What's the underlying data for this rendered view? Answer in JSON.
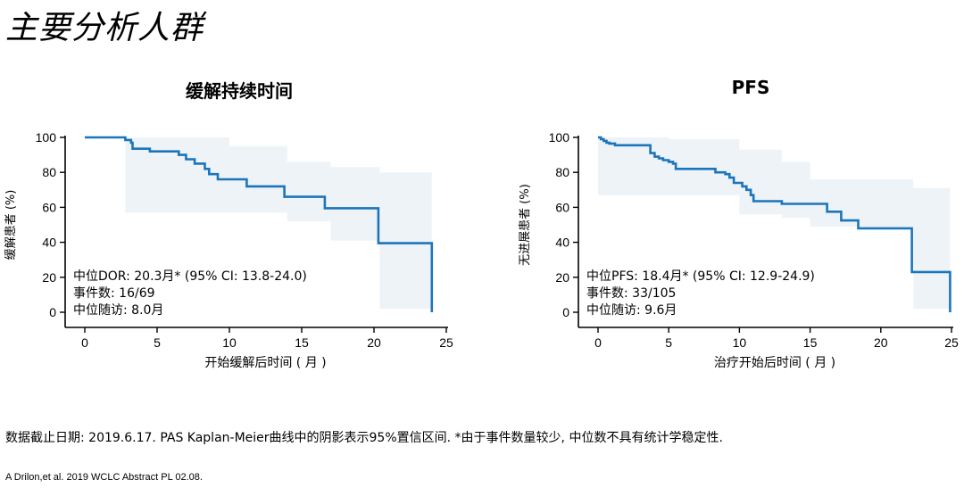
{
  "page": {
    "title": "主要分析人群",
    "footnote": "数据截止日期: 2019.6.17. PAS Kaplan-Meier曲线中的阴影表示95%置信区间. *由于事件数量较少, 中位数不具有统计学稳定性.",
    "reference": "A Drilon,et al. 2019 WCLC Abstract PL 02.08."
  },
  "colors": {
    "curve": "#1b75bb",
    "ci_band": "#eef3f8",
    "axis": "#000000"
  },
  "chart_data": [
    {
      "type": "line",
      "subtype": "kaplan-meier",
      "title": "缓解持续时间",
      "xlabel": "开始缓解后时间 ( 月 )",
      "ylabel": "缓解患者 (%)",
      "xlim": [
        0,
        25
      ],
      "ylim": [
        0,
        100
      ],
      "xticks": [
        0,
        5,
        10,
        15,
        20,
        25
      ],
      "yticks": [
        0,
        20,
        40,
        60,
        80,
        100
      ],
      "grid": false,
      "annotations": [
        "中位DOR: 20.3月* (95% CI: 13.8-24.0)",
        "事件数: 16/69",
        "中位随访: 8.0月"
      ],
      "series": [
        {
          "x": [
            0,
            2.8,
            3.2,
            3.3,
            4.5,
            5.0,
            6.5,
            7.0,
            7.6,
            8.3,
            8.6,
            9.2,
            11.2,
            13.8,
            16.6,
            20.3,
            24.0,
            24.0
          ],
          "y": [
            100,
            98.5,
            97,
            93.5,
            92,
            92,
            90,
            87.5,
            85,
            82,
            79,
            76,
            72,
            66,
            59.5,
            39.5,
            39.5,
            0
          ]
        }
      ],
      "ci_band": {
        "x": [
          2.8,
          8.0,
          10.0,
          14.0,
          17.0,
          20.4,
          24.0
        ],
        "lower": [
          57,
          57,
          57,
          52,
          41,
          2,
          2
        ],
        "upper": [
          100,
          100,
          95,
          86,
          83,
          80,
          80
        ]
      }
    },
    {
      "type": "line",
      "subtype": "kaplan-meier",
      "title": "PFS",
      "xlabel": "治疗开始后时间 ( 月 )",
      "ylabel": "无进展患者 (%)",
      "xlim": [
        0,
        25
      ],
      "ylim": [
        0,
        100
      ],
      "xticks": [
        0,
        5,
        10,
        15,
        20,
        25
      ],
      "yticks": [
        0,
        20,
        40,
        60,
        80,
        100
      ],
      "grid": false,
      "annotations": [
        "中位PFS: 18.4月* (95% CI: 12.9-24.9)",
        "事件数: 33/105",
        "中位随访: 9.6月"
      ],
      "series": [
        {
          "x": [
            0,
            0.2,
            0.4,
            0.6,
            0.8,
            1.2,
            3.5,
            3.7,
            4.0,
            4.3,
            4.6,
            5.0,
            5.3,
            5.5,
            7.2,
            8.3,
            9.0,
            9.3,
            9.6,
            10.2,
            10.5,
            10.8,
            11.0,
            13.0,
            16.2,
            17.2,
            18.4,
            22.2,
            24.9,
            24.9
          ],
          "y": [
            100,
            99,
            98,
            97,
            96.5,
            95.5,
            95.5,
            91,
            89,
            88,
            87,
            86,
            85,
            82,
            82,
            80,
            79,
            77,
            74,
            72,
            70,
            67,
            63.5,
            62,
            57.5,
            52.5,
            48,
            23,
            23,
            0
          ]
        }
      ],
      "ci_band": {
        "x": [
          0,
          1.0,
          5.0,
          10.0,
          13.0,
          15.0,
          22.3,
          24.9
        ],
        "lower": [
          67,
          67,
          67,
          56,
          54,
          49,
          2,
          2
        ],
        "upper": [
          100,
          100,
          99,
          93,
          86,
          76,
          71,
          71
        ]
      }
    }
  ]
}
